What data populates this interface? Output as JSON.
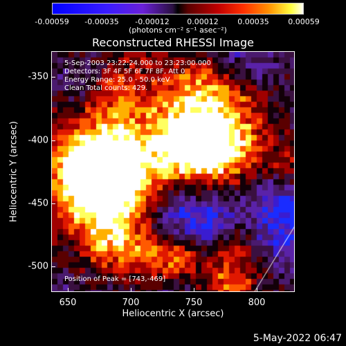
{
  "colorbar": {
    "ticks": [
      "-0.00059",
      "-0.00035",
      "-0.00012",
      "0.00012",
      "0.00035",
      "0.00059"
    ],
    "units": "(photons cm⁻² s⁻¹ asec⁻²)"
  },
  "plot": {
    "title": "Reconstructed RHESSI Image",
    "info_lines": [
      "5-Sep-2003 23:22:24.000 to 23:23:00.000",
      "Detectors: 3F 4F 5F 6F 7F 8F, Att 0",
      "Energy Range: 25.0 - 50.0 keV",
      "Clean      Total counts: 429."
    ],
    "peak": "Position of Peak = [743,-469]",
    "footer": "5-May-2022 06:47"
  },
  "chart_data": {
    "type": "heatmap",
    "title": "Reconstructed RHESSI Image",
    "xlabel": "Heliocentric X (arcsec)",
    "ylabel": "Heliocentric Y (arcsec)",
    "xlim": [
      637,
      830
    ],
    "ylim": [
      -522,
      -332
    ],
    "x_ticks": [
      "650",
      "700",
      "750",
      "800"
    ],
    "y_ticks": [
      "-350",
      "-400",
      "-450",
      "-500"
    ],
    "colorbar_range": [
      -0.00059,
      0.00059
    ],
    "peak": [
      743,
      -469
    ]
  }
}
